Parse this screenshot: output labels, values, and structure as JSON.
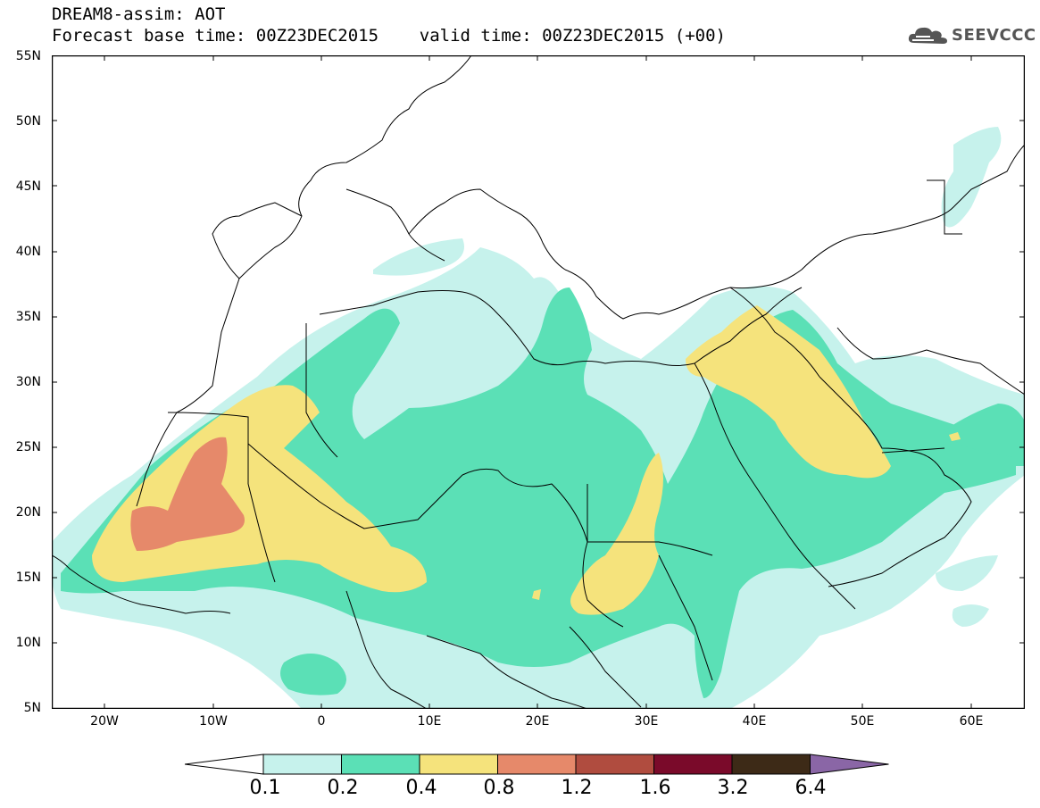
{
  "header": {
    "line1": "DREAM8-assim: AOT",
    "line2": "Forecast base time: 00Z23DEC2015    valid time: 00Z23DEC2015 (+00)"
  },
  "logo": {
    "text": "SEEVCCC",
    "icon": "cloud-icon"
  },
  "map": {
    "lat_labels": [
      "55N",
      "50N",
      "45N",
      "40N",
      "35N",
      "30N",
      "25N",
      "20N",
      "15N",
      "10N",
      "5N"
    ],
    "lon_labels": [
      "20W",
      "10W",
      "0",
      "10E",
      "20E",
      "30E",
      "40E",
      "50E",
      "60E"
    ]
  },
  "legend": {
    "labels": [
      "0.1",
      "0.2",
      "0.4",
      "0.8",
      "1.2",
      "1.6",
      "3.2",
      "6.4"
    ],
    "colors": [
      "#ffffff",
      "#c6f2ec",
      "#5be0b6",
      "#f5e37c",
      "#e6896a",
      "#b04c3f",
      "#7a0a2a",
      "#3d2a17",
      "#8a66a6"
    ]
  }
}
